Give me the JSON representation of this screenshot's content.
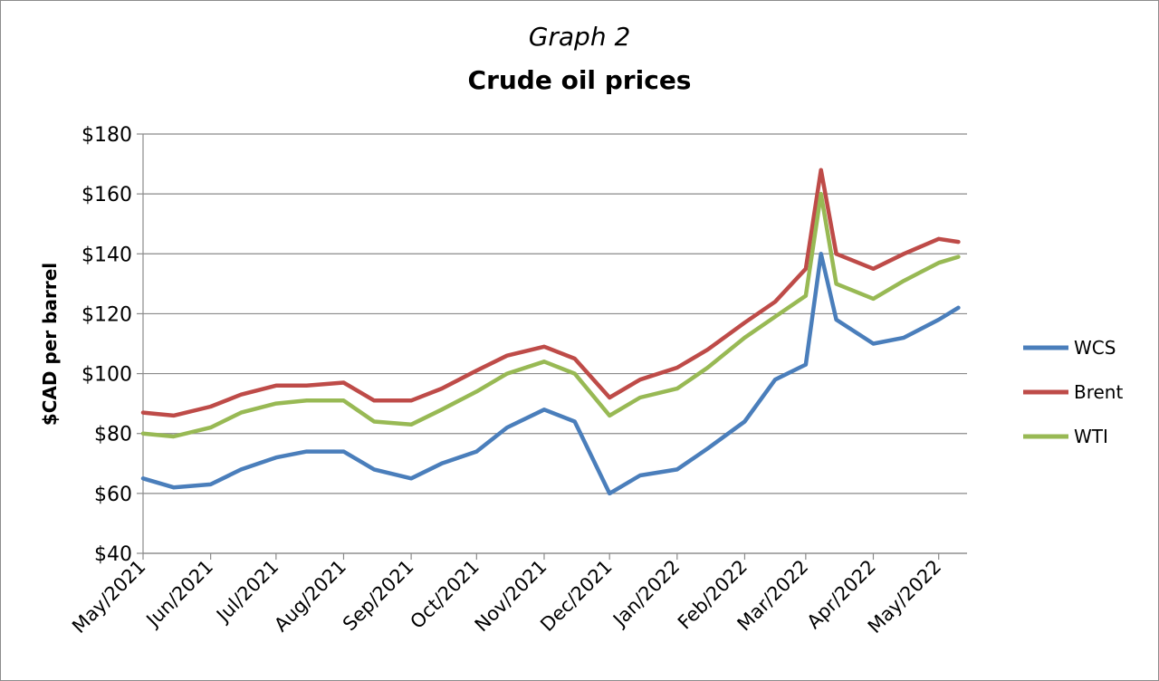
{
  "chart_data": {
    "type": "line",
    "title": "Graph 2",
    "subtitle": "Crude oil prices",
    "xlabel": "",
    "ylabel": "$CAD per barrel",
    "ylim": [
      40,
      180
    ],
    "yticks": [
      "$40",
      "$60",
      "$80",
      "$100",
      "$120",
      "$140",
      "$160",
      "$180"
    ],
    "xticks": [
      "May/2021",
      "Jun/2021",
      "Jul/2021",
      "Aug/2021",
      "Sep/2021",
      "Oct/2021",
      "Nov/2021",
      "Dec/2021",
      "Jan/2022",
      "Feb/2022",
      "Mar/2022",
      "Apr/2022",
      "May/2022"
    ],
    "grid": true,
    "legend": "right",
    "x": [
      "2021-05-01",
      "2021-05-15",
      "2021-06-01",
      "2021-06-15",
      "2021-07-01",
      "2021-07-15",
      "2021-08-01",
      "2021-08-15",
      "2021-09-01",
      "2021-09-15",
      "2021-10-01",
      "2021-10-15",
      "2021-11-01",
      "2021-11-15",
      "2021-12-01",
      "2021-12-15",
      "2022-01-01",
      "2022-01-15",
      "2022-02-01",
      "2022-02-15",
      "2022-03-01",
      "2022-03-08",
      "2022-03-15",
      "2022-04-01",
      "2022-04-15",
      "2022-05-01",
      "2022-05-10"
    ],
    "series": [
      {
        "name": "WCS",
        "color": "#4a7ebb",
        "values": [
          65,
          62,
          63,
          68,
          72,
          74,
          74,
          68,
          65,
          70,
          74,
          82,
          88,
          84,
          60,
          66,
          68,
          75,
          84,
          98,
          103,
          140,
          118,
          110,
          112,
          118,
          122
        ]
      },
      {
        "name": "Brent",
        "color": "#be4b48",
        "values": [
          87,
          86,
          89,
          93,
          96,
          96,
          97,
          91,
          91,
          95,
          101,
          106,
          109,
          105,
          92,
          98,
          102,
          108,
          117,
          124,
          135,
          168,
          140,
          135,
          140,
          145,
          144
        ]
      },
      {
        "name": "WTI",
        "color": "#98b954",
        "values": [
          80,
          79,
          82,
          87,
          90,
          91,
          91,
          84,
          83,
          88,
          94,
          100,
          104,
          100,
          86,
          92,
          95,
          102,
          112,
          119,
          126,
          160,
          130,
          125,
          131,
          137,
          139
        ]
      }
    ]
  }
}
